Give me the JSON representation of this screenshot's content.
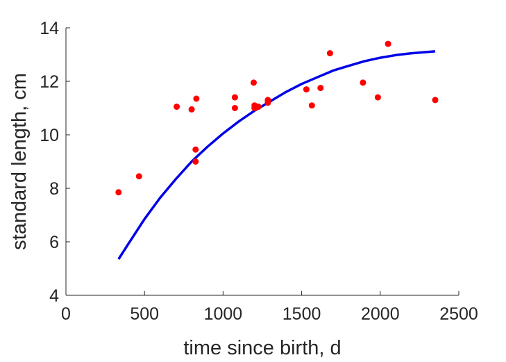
{
  "chart_data": {
    "type": "scatter",
    "title": "",
    "xlabel": "time since birth, d",
    "ylabel": "standard length, cm",
    "xlim": [
      0,
      2500
    ],
    "ylim": [
      4,
      14
    ],
    "xticks": [
      0,
      500,
      1000,
      1500,
      2000,
      2500
    ],
    "yticks": [
      4,
      6,
      8,
      10,
      12,
      14
    ],
    "grid": false,
    "legend": "none",
    "points": {
      "color": "#ff0000",
      "x": [
        335,
        465,
        705,
        800,
        825,
        825,
        830,
        1075,
        1075,
        1195,
        1200,
        1200,
        1225,
        1285,
        1285,
        1530,
        1565,
        1620,
        1680,
        1890,
        1985,
        2050,
        2350
      ],
      "y": [
        7.85,
        8.45,
        11.05,
        10.95,
        9.45,
        9.0,
        11.35,
        11.4,
        11.0,
        11.95,
        11.1,
        11.0,
        11.05,
        11.3,
        11.2,
        11.7,
        11.1,
        11.75,
        13.05,
        11.95,
        11.4,
        13.4,
        11.3
      ]
    },
    "fit_curve": {
      "color": "#0000e6",
      "x": [
        335,
        400,
        500,
        600,
        700,
        800,
        900,
        1000,
        1100,
        1200,
        1300,
        1400,
        1500,
        1600,
        1700,
        1800,
        1900,
        2000,
        2100,
        2200,
        2350
      ],
      "y": [
        5.35,
        5.95,
        6.85,
        7.65,
        8.35,
        9.0,
        9.55,
        10.05,
        10.5,
        10.9,
        11.25,
        11.6,
        11.9,
        12.15,
        12.4,
        12.58,
        12.75,
        12.88,
        12.98,
        13.05,
        13.12
      ]
    }
  }
}
